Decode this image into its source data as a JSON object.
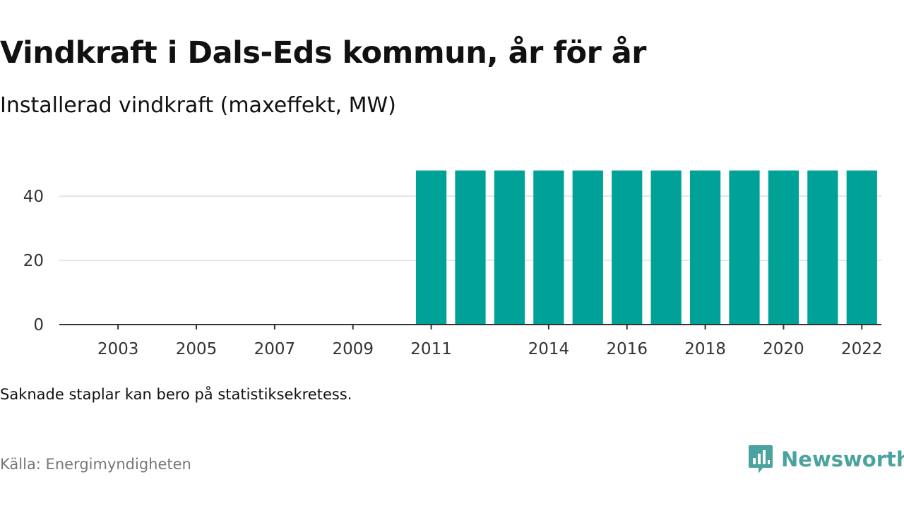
{
  "header": {
    "title": "Vindkraft i Dals-Eds kommun, år för år",
    "subtitle": "Installerad vindkraft (maxeffekt, MW)"
  },
  "footer": {
    "note": "Saknade staplar kan bero på statistiksekretess.",
    "source": "Källa: Energimyndigheten",
    "brand": "Newsworthy"
  },
  "colors": {
    "bar": "#00a298",
    "brand": "#4aa39e",
    "grid": "#dddddd",
    "axis": "#333333"
  },
  "icons": {
    "logo": "bar-chart-speech-bubble-icon"
  },
  "chart_data": {
    "type": "bar",
    "title": "Vindkraft i Dals-Eds kommun, år för år",
    "subtitle": "Installerad vindkraft (maxeffekt, MW)",
    "xlabel": "",
    "ylabel": "",
    "categories": [
      "2002",
      "2003",
      "2004",
      "2005",
      "2006",
      "2007",
      "2008",
      "2009",
      "2010",
      "2011",
      "2012",
      "2013",
      "2014",
      "2015",
      "2016",
      "2017",
      "2018",
      "2019",
      "2020",
      "2021",
      "2022"
    ],
    "values": [
      null,
      null,
      null,
      null,
      null,
      null,
      null,
      null,
      null,
      48,
      48,
      48,
      48,
      48,
      48,
      48,
      48,
      48,
      48,
      48,
      48
    ],
    "x_tick_labels": [
      "2003",
      "2005",
      "2007",
      "2009",
      "2011",
      "2014",
      "2016",
      "2018",
      "2020",
      "2022"
    ],
    "y_ticks": [
      0,
      20,
      40
    ],
    "ylim": [
      0,
      48
    ],
    "grid": true,
    "legend": "none"
  }
}
